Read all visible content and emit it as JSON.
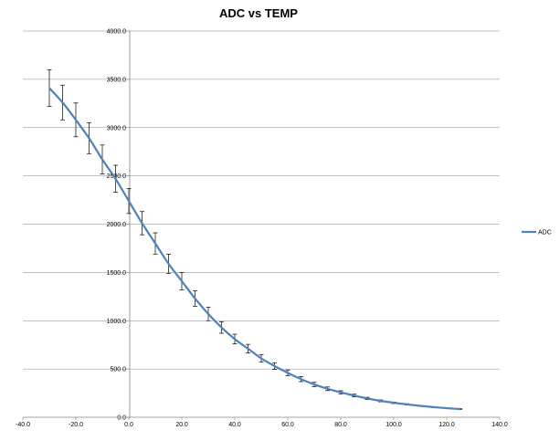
{
  "chart_data": {
    "type": "line",
    "title": "ADC vs TEMP",
    "xlabel": "",
    "ylabel": "",
    "xlim": [
      -40,
      140
    ],
    "ylim": [
      0,
      4000
    ],
    "x_ticks": [
      "-40.0",
      "-20.0",
      "0.0",
      "20.0",
      "40.0",
      "60.0",
      "80.0",
      "100.0",
      "120.0",
      "140.0"
    ],
    "y_ticks": [
      "0.0",
      "500.0",
      "1000.0",
      "1500.0",
      "2000.0",
      "2500.0",
      "3000.0",
      "3500.0",
      "4000.0"
    ],
    "grid": "horizontal",
    "legend_position": "right",
    "series": [
      {
        "name": "ADC",
        "color": "#4f81bd",
        "x": [
          -30,
          -25,
          -20,
          -15,
          -10,
          -5,
          0,
          5,
          10,
          15,
          20,
          25,
          30,
          35,
          40,
          45,
          50,
          55,
          60,
          65,
          70,
          75,
          80,
          85,
          90,
          95,
          100,
          105,
          110,
          115,
          120,
          125
        ],
        "y": [
          3410,
          3260,
          3080,
          2890,
          2670,
          2470,
          2240,
          2010,
          1800,
          1590,
          1410,
          1230,
          1070,
          930,
          810,
          710,
          610,
          530,
          460,
          395,
          340,
          295,
          258,
          225,
          195,
          170,
          150,
          133,
          118,
          105,
          94,
          85
        ],
        "error": [
          190,
          180,
          175,
          160,
          150,
          140,
          130,
          120,
          110,
          100,
          90,
          80,
          70,
          60,
          50,
          45,
          40,
          35,
          30,
          26,
          22,
          19,
          16,
          14,
          12,
          10,
          8,
          7,
          6,
          5,
          4,
          3
        ]
      }
    ]
  }
}
